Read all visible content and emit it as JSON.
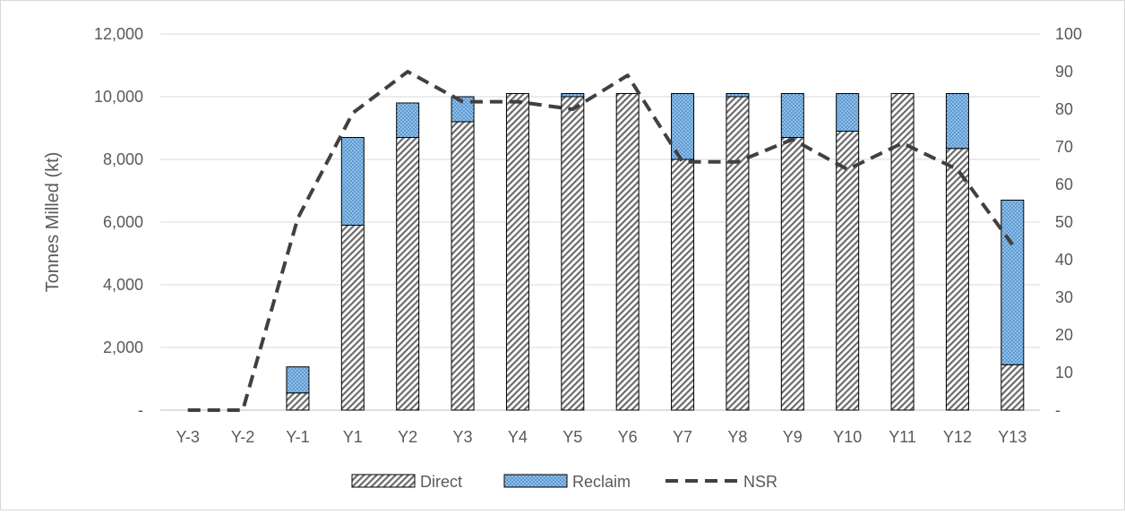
{
  "chart_data": {
    "type": "bar",
    "stacked": true,
    "title": "",
    "ylabel": "Tonnes Milled (kt)",
    "y2label": "",
    "ylim": [
      0,
      12000
    ],
    "y2lim": [
      0,
      100
    ],
    "yticks": [
      "-",
      "2,000",
      "4,000",
      "6,000",
      "8,000",
      "10,000",
      "12,000"
    ],
    "y2ticks": [
      "-",
      "10",
      "20",
      "30",
      "40",
      "50",
      "60",
      "70",
      "80",
      "90",
      "100"
    ],
    "grid": true,
    "legend_position": "bottom",
    "categories": [
      "Y-3",
      "Y-2",
      "Y-1",
      "Y1",
      "Y2",
      "Y3",
      "Y4",
      "Y5",
      "Y6",
      "Y7",
      "Y8",
      "Y9",
      "Y10",
      "Y11",
      "Y12",
      "Y13"
    ],
    "series": [
      {
        "name": "Direct",
        "kind": "bar",
        "axis": "left",
        "color": "#7f7f7f",
        "values": [
          0,
          0,
          550,
          5900,
          8700,
          9200,
          10100,
          10000,
          10100,
          8000,
          10000,
          8700,
          8900,
          10100,
          8350,
          1450
        ]
      },
      {
        "name": "Reclaim",
        "kind": "bar",
        "axis": "left",
        "color": "#5b9bd5",
        "values": [
          0,
          0,
          830,
          2800,
          1100,
          800,
          0,
          100,
          0,
          2100,
          100,
          1400,
          1200,
          0,
          1750,
          5250
        ]
      },
      {
        "name": "NSR",
        "kind": "line",
        "axis": "right",
        "color": "#404040",
        "values": [
          0,
          0,
          51,
          79,
          90,
          82,
          82,
          80,
          89,
          66,
          66,
          72,
          64,
          71,
          64,
          44
        ]
      }
    ]
  }
}
